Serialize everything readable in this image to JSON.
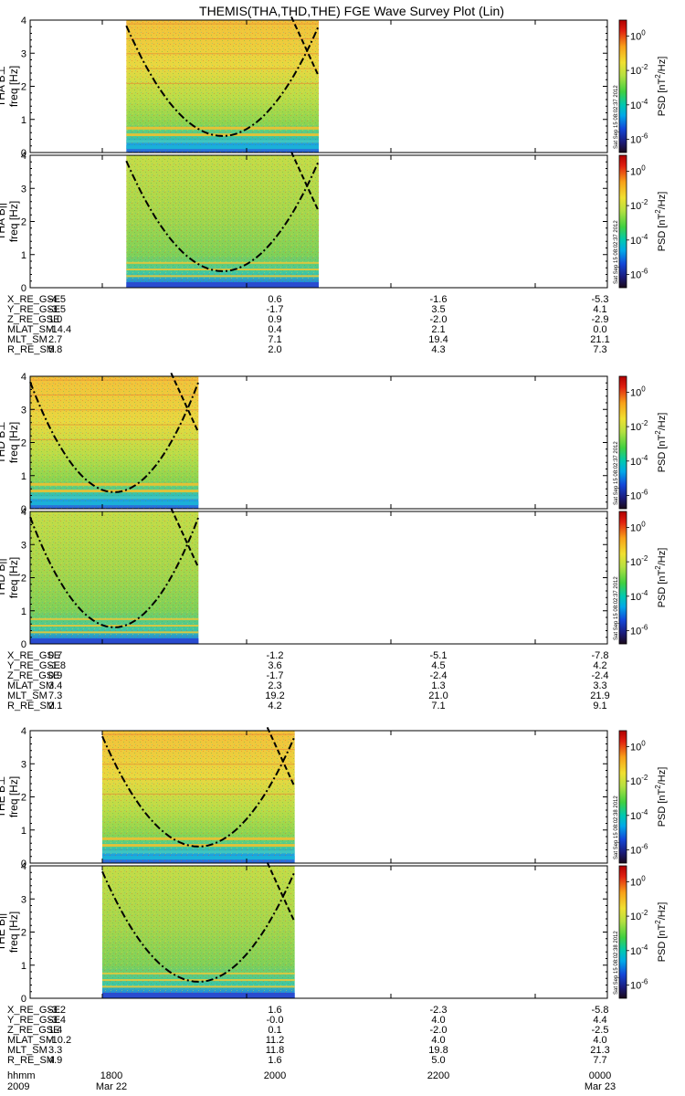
{
  "title": "THEMIS(THA,THD,THE) FGE Wave Survey Plot (Lin)",
  "colors": {
    "background": "#ffffff",
    "frame": "#000000",
    "spectrogram_base": "#a8d84a",
    "spectrogram_high": "#f4c238",
    "line_band": "#2fc4c0",
    "colormap": [
      "#1a0a1a",
      "#1b1b7a",
      "#1347d8",
      "#00a8e8",
      "#00c8b0",
      "#40d040",
      "#b4e040",
      "#f0e030",
      "#f8a018",
      "#e02010",
      "#b00000"
    ]
  },
  "colorbar": {
    "ticks": [
      "10^0",
      "10^-2",
      "10^-4",
      "10^-6"
    ],
    "label_main": "PSD [nT",
    "label_sup": "2",
    "label_tail": "/Hz]",
    "stamps": [
      "Sat Sep 15 08:02:37 2012",
      "Sat Sep 15 08:02:37 2012",
      "Sat Sep 15 08:02:38 2012"
    ]
  },
  "time_axis": {
    "range": [
      "2009-03-22 17:00",
      "2009-03-23 01:00"
    ],
    "row_label": "hhmm",
    "ticks": [
      "1800",
      "2000",
      "2200",
      "0000"
    ],
    "date_row": [
      "2009",
      "Mar 22",
      "Mar 23"
    ]
  },
  "chart_data": [
    {
      "type": "heatmap",
      "probe": "THA",
      "ylabel_top": "THA B⊥",
      "ylabel_bottom": "THA B||",
      "ylabel_freq": "freq [Hz]",
      "y_ticks": [
        "0",
        "1",
        "2",
        "3",
        "4"
      ],
      "ylim": [
        0,
        4
      ],
      "data_coverage": [
        "18:20",
        "21:00"
      ],
      "bright_lines": true
    },
    {
      "type": "heatmap",
      "probe": "THD",
      "ylabel_top": "THD B⊥",
      "ylabel_bottom": "THD B||",
      "ylabel_freq": "freq [Hz]",
      "y_ticks": [
        "0",
        "1",
        "2",
        "3",
        "4"
      ],
      "ylim": [
        0,
        4
      ],
      "data_coverage": [
        "17:00",
        "19:20"
      ],
      "bright_lines": true
    },
    {
      "type": "heatmap",
      "probe": "THE",
      "ylabel_top": "THE B⊥",
      "ylabel_bottom": "THE B||",
      "ylabel_freq": "freq [Hz]",
      "y_ticks": [
        "0",
        "1",
        "2",
        "3",
        "4"
      ],
      "ylim": [
        0,
        4
      ],
      "data_coverage": [
        "18:00",
        "20:40"
      ],
      "bright_lines": true
    }
  ],
  "ephemeris": [
    {
      "labels": [
        "X_RE_GSE",
        "Y_RE_GSE",
        "Z_RE_GSE",
        "MLAT_SM",
        "MLT_SM",
        "R_RE_SM"
      ],
      "columns": [
        [
          "-4.5",
          "-3.5",
          "1.0",
          "-14.4",
          "2.7",
          "5.8"
        ],
        [
          "0.6",
          "-1.7",
          "0.9",
          "0.4",
          "7.1",
          "2.0"
        ],
        [
          "-1.6",
          "3.5",
          "-2.0",
          "2.1",
          "19.4",
          "4.3"
        ],
        [
          "-5.3",
          "4.1",
          "-2.9",
          "0.0",
          "21.1",
          "7.3"
        ]
      ]
    },
    {
      "labels": [
        "X_RE_GSE",
        "Y_RE_GSE",
        "Z_RE_GSE",
        "MLAT_SM",
        "MLT_SM",
        "R_RE_SM"
      ],
      "columns": [
        [
          "0.7",
          "-1.8",
          "0.9",
          "3.4",
          "7.3",
          "2.1"
        ],
        [
          "-1.2",
          "3.6",
          "-1.7",
          "2.3",
          "19.2",
          "4.2"
        ],
        [
          "-5.1",
          "4.5",
          "-2.4",
          "1.3",
          "21.0",
          "7.1"
        ],
        [
          "-7.8",
          "4.2",
          "-2.4",
          "3.3",
          "21.9",
          "9.1"
        ]
      ]
    },
    {
      "labels": [
        "X_RE_GSE",
        "Y_RE_GSE",
        "Z_RE_GSE",
        "MLAT_SM",
        "MLT_SM",
        "R_RE_SM"
      ],
      "columns": [
        [
          "-3.2",
          "-3.4",
          "1.4",
          "-10.2",
          "3.3",
          "4.9"
        ],
        [
          "1.6",
          "-0.0",
          "0.1",
          "11.2",
          "11.8",
          "1.6"
        ],
        [
          "-2.3",
          "4.0",
          "-2.0",
          "4.0",
          "19.8",
          "5.0"
        ],
        [
          "-5.8",
          "4.4",
          "-2.5",
          "4.0",
          "21.3",
          "7.7"
        ]
      ]
    }
  ]
}
